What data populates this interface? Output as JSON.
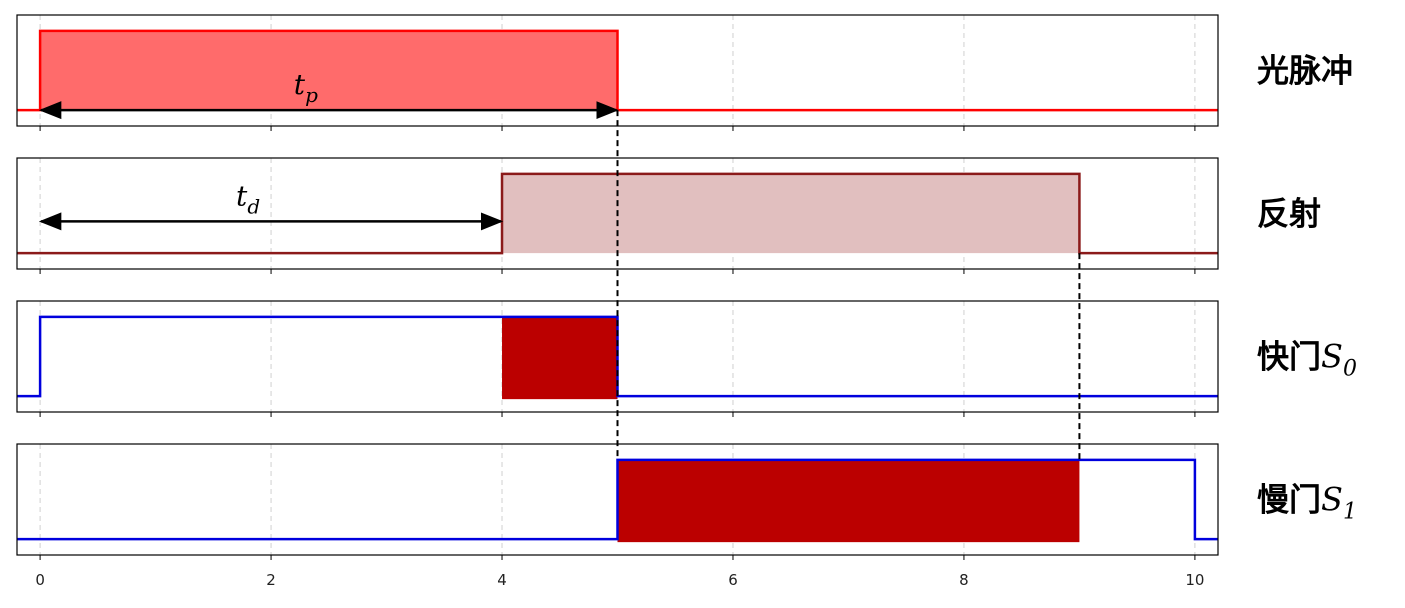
{
  "chart_data": {
    "type": "timing",
    "xlim": [
      -0.2,
      10.2
    ],
    "ylim": [
      -0.2,
      1.2
    ],
    "xticks": [
      0,
      2,
      4,
      6,
      8,
      10
    ],
    "grid": true,
    "connectors_x": [
      5,
      9
    ],
    "panels": [
      {
        "label": "光脉冲",
        "color": "#ff0000",
        "fill": "#ff6b6b",
        "x": [
          -0.2,
          0,
          0,
          5,
          5,
          10.2
        ],
        "y": [
          0,
          0,
          1,
          1,
          0,
          0
        ],
        "annotation": {
          "symbol": "t",
          "subscript": "p",
          "from": 0,
          "to": 5,
          "y": 0
        }
      },
      {
        "label": "反射",
        "color": "#8b1a1a",
        "fill": "#e1bfbf",
        "x": [
          -0.2,
          4,
          4,
          9,
          9,
          10.2
        ],
        "y": [
          0,
          0,
          1,
          1,
          0,
          0
        ],
        "annotation": {
          "symbol": "t",
          "subscript": "d",
          "from": 0,
          "to": 4,
          "y": 0.4
        }
      },
      {
        "label": "快门",
        "symbol": "S",
        "subscript": "0",
        "color": "#0000dd",
        "x": [
          -0.2,
          0,
          0,
          5,
          5,
          10.2
        ],
        "y": [
          0,
          0,
          1,
          1,
          0,
          0
        ],
        "highlight": {
          "from": 4,
          "to": 5,
          "color": "#bb0000"
        }
      },
      {
        "label": "慢门",
        "symbol": "S",
        "subscript": "1",
        "color": "#0000dd",
        "x": [
          -0.2,
          5,
          5,
          10,
          10,
          10.2
        ],
        "y": [
          0,
          0,
          1,
          1,
          0,
          0
        ],
        "highlight": {
          "from": 5,
          "to": 9,
          "color": "#bb0000"
        }
      }
    ]
  }
}
